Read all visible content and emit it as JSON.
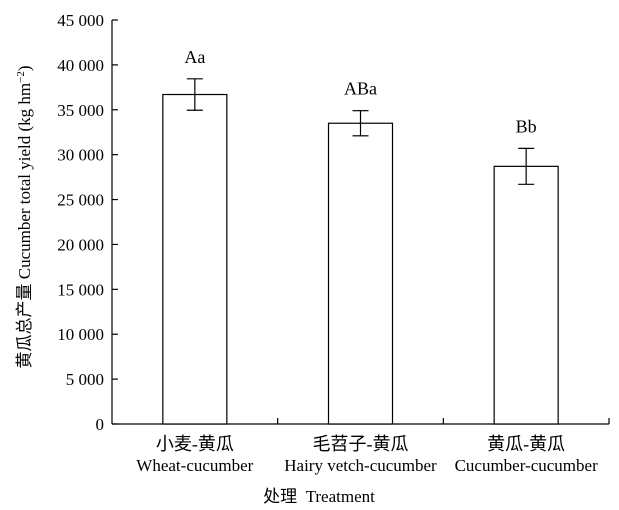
{
  "chart_data": {
    "type": "bar",
    "categories": [
      {
        "zh": "小麦-黄瓜",
        "en": "Wheat-cucumber"
      },
      {
        "zh": "毛苕子-黄瓜",
        "en": "Hairy vetch-cucumber"
      },
      {
        "zh": "黄瓜-黄瓜",
        "en": "Cucumber-cucumber"
      }
    ],
    "values": [
      36700,
      33500,
      28700
    ],
    "errors": [
      1750,
      1400,
      2000
    ],
    "labels": [
      "Aa",
      "ABa",
      "Bb"
    ],
    "ylabel_main": "黄瓜总产量 Cucumber total yield (kg hm",
    "ylabel_sup": "−2",
    "ylabel_close": ")",
    "xlabel": "处理  Treatment",
    "ylim": [
      0,
      45000
    ],
    "yticks": [
      "0",
      "5 000",
      "10 000",
      "15 000",
      "20 000",
      "25 000",
      "30 000",
      "35 000",
      "40 000",
      "45 000"
    ],
    "bar_fill": "#ffffff",
    "bar_stroke": "#000000",
    "grid": false
  }
}
